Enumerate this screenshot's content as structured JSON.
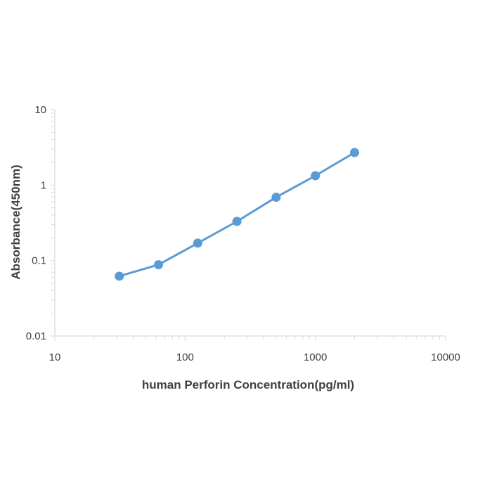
{
  "chart_data": {
    "type": "line",
    "title": "",
    "xlabel": "human Perforin Concentration(pg/ml)",
    "ylabel": "Absorbance(450nm)",
    "x_scale": "log",
    "y_scale": "log",
    "xlim": [
      10,
      10000
    ],
    "ylim": [
      0.01,
      10
    ],
    "x_tick_labels": [
      "10",
      "100",
      "1000",
      "10000"
    ],
    "y_tick_labels": [
      "0.01",
      "0.1",
      "1",
      "10"
    ],
    "grid": false,
    "legend": "none",
    "series": [
      {
        "color": "#5b9bd5",
        "x": [
          31.25,
          62.5,
          125,
          250,
          500,
          1000,
          2000
        ],
        "y": [
          0.062,
          0.088,
          0.17,
          0.33,
          0.69,
          1.33,
          2.7
        ]
      }
    ]
  }
}
